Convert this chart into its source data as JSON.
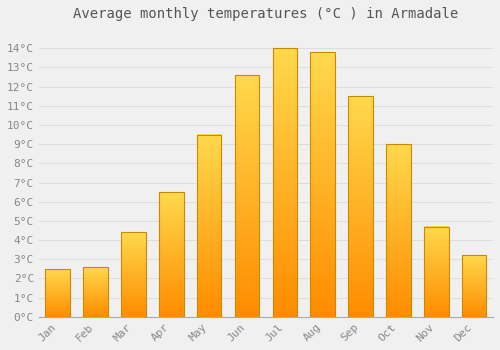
{
  "title": "Average monthly temperatures (°C ) in Armadale",
  "months": [
    "Jan",
    "Feb",
    "Mar",
    "Apr",
    "May",
    "Jun",
    "Jul",
    "Aug",
    "Sep",
    "Oct",
    "Nov",
    "Dec"
  ],
  "values": [
    2.5,
    2.6,
    4.4,
    6.5,
    9.5,
    12.6,
    14.0,
    13.8,
    11.5,
    9.0,
    4.7,
    3.2
  ],
  "bar_color": "#FFA500",
  "bar_edge_color": "#CC8800",
  "ylim": [
    0,
    15
  ],
  "yticks": [
    0,
    1,
    2,
    3,
    4,
    5,
    6,
    7,
    8,
    9,
    10,
    11,
    12,
    13,
    14
  ],
  "ytick_labels": [
    "0°C",
    "1°C",
    "2°C",
    "3°C",
    "4°C",
    "5°C",
    "6°C",
    "7°C",
    "8°C",
    "9°C",
    "10°C",
    "11°C",
    "12°C",
    "13°C",
    "14°C"
  ],
  "background_color": "#F0F0F0",
  "grid_color": "#DDDDDD",
  "title_fontsize": 10,
  "tick_fontsize": 8,
  "font_family": "monospace"
}
